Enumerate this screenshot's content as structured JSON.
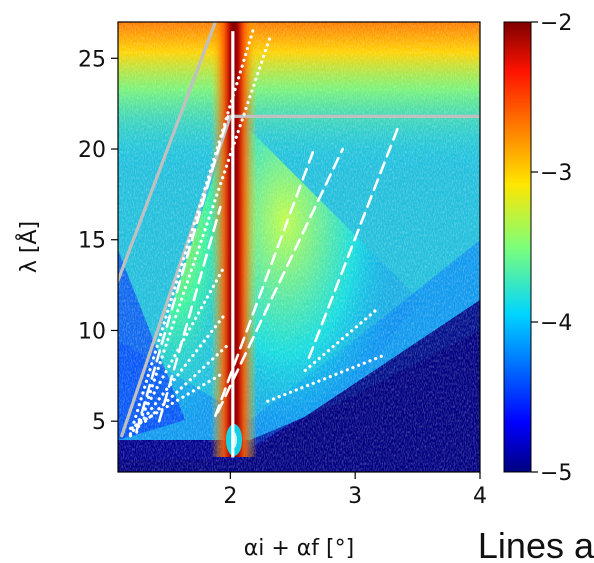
{
  "chart_data": {
    "type": "heatmap",
    "title": "",
    "xlabel": "αi + αf [°]",
    "ylabel": "λ [Å]",
    "xlim": [
      1.1,
      4.0
    ],
    "ylim": [
      2.2,
      27.0
    ],
    "x_ticks": [
      2,
      3,
      4
    ],
    "y_ticks": [
      5,
      10,
      15,
      20,
      25
    ],
    "colorbar": {
      "scale": "log10",
      "range": [
        -5,
        -2
      ],
      "ticks": [
        -2,
        -3,
        -4,
        -5
      ],
      "colormap": "jet"
    },
    "specular_line": {
      "x": 2.02,
      "y_start": 3.0,
      "y_end": 26.5
    },
    "gray_lines": [
      {
        "points": [
          [
            1.13,
            4.2
          ],
          [
            2.0,
            21.8
          ]
        ]
      },
      {
        "points": [
          [
            2.0,
            21.8
          ],
          [
            4.0,
            21.8
          ]
        ]
      },
      {
        "points": [
          [
            1.07,
            12.2
          ],
          [
            1.88,
            27.0
          ]
        ]
      }
    ],
    "white_dashed_lines": [
      {
        "points": [
          [
            1.25,
            4.5
          ],
          [
            1.98,
            21.8
          ]
        ]
      },
      {
        "points": [
          [
            1.43,
            5.0
          ],
          [
            1.92,
            16.8
          ]
        ]
      },
      {
        "points": [
          [
            1.88,
            5.3
          ],
          [
            2.67,
            20.0
          ]
        ]
      },
      {
        "points": [
          [
            1.9,
            5.5
          ],
          [
            2.9,
            20.0
          ]
        ]
      },
      {
        "points": [
          [
            2.63,
            8.5
          ],
          [
            3.35,
            21.3
          ]
        ]
      }
    ],
    "white_dotted_lines": [
      {
        "points": [
          [
            1.2,
            4.3
          ],
          [
            2.18,
            26.5
          ]
        ]
      },
      {
        "points": [
          [
            1.25,
            4.4
          ],
          [
            2.32,
            26.2
          ]
        ]
      },
      {
        "points": [
          [
            2.6,
            7.8
          ],
          [
            3.18,
            11.2
          ]
        ]
      },
      {
        "points": [
          [
            2.3,
            6.1
          ],
          [
            3.22,
            8.6
          ]
        ]
      },
      {
        "points": [
          [
            1.2,
            4.2
          ],
          [
            1.95,
            13.5
          ]
        ]
      },
      {
        "points": [
          [
            1.28,
            4.9
          ],
          [
            1.97,
            11.0
          ]
        ]
      },
      {
        "points": [
          [
            1.32,
            5.0
          ],
          [
            1.98,
            9.2
          ]
        ]
      },
      {
        "points": [
          [
            1.2,
            4.6
          ],
          [
            1.93,
            7.6
          ]
        ]
      }
    ]
  },
  "caption": "Lines a",
  "colors": {
    "specular_line": "#ffffff",
    "guide_lines": "#c0c0c0",
    "background_low": "#00007f",
    "background_high": "#7f0000"
  }
}
